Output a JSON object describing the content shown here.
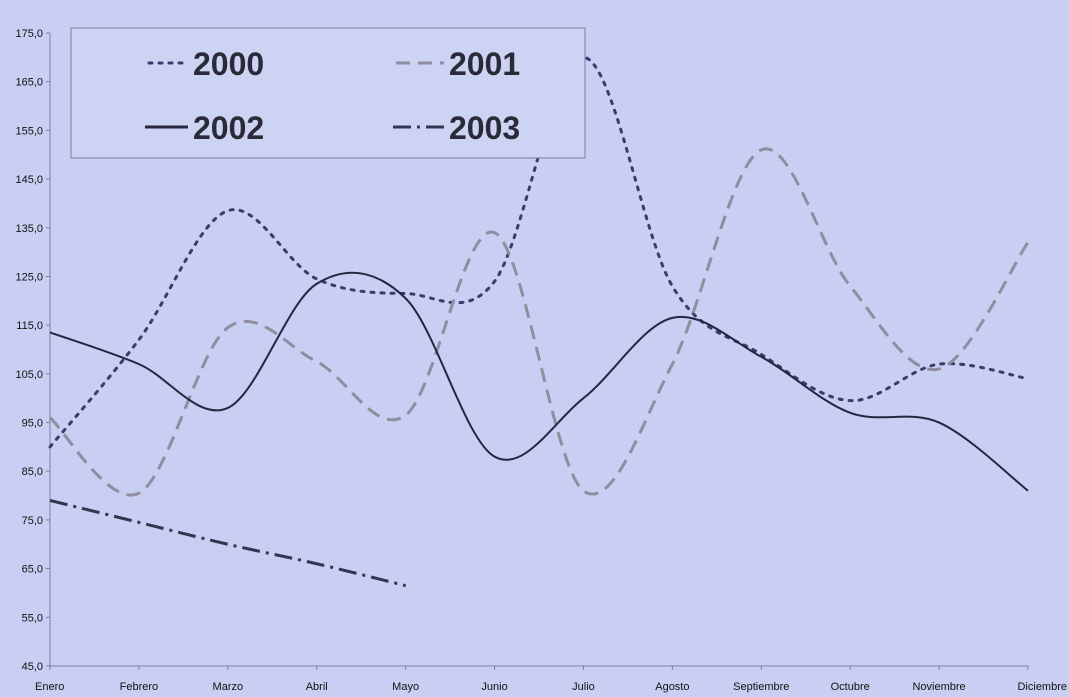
{
  "chart_data": {
    "type": "line",
    "title": "",
    "xlabel": "",
    "ylabel": "",
    "categories": [
      "Enero",
      "Febrero",
      "Marzo",
      "Abril",
      "Mayo",
      "Junio",
      "Julio",
      "Agosto",
      "Septiembre",
      "Octubre",
      "Noviembre",
      "Diciembre"
    ],
    "ylim": [
      45,
      175
    ],
    "yticks": [
      "45,0",
      "55,0",
      "65,0",
      "75,0",
      "85,0",
      "95,0",
      "105,0",
      "115,0",
      "125,0",
      "135,0",
      "145,0",
      "155,0",
      "165,0",
      "175,0"
    ],
    "grid": false,
    "legend_position": "top-left",
    "series": [
      {
        "name": "2000",
        "style": "dotted",
        "color": "#3b3b70",
        "values": [
          90.0,
          112.0,
          138.5,
          124.5,
          121.5,
          124.0,
          170.0,
          123.0,
          109.0,
          99.5,
          107.0,
          104.0
        ]
      },
      {
        "name": "2001",
        "style": "dashed",
        "color": "#8e8e9e",
        "values": [
          96.0,
          80.5,
          114.5,
          107.5,
          96.5,
          134.0,
          81.0,
          107.0,
          151.0,
          123.0,
          106.0,
          132.0
        ]
      },
      {
        "name": "2002",
        "style": "solid",
        "color": "#262640",
        "values": [
          113.5,
          107.0,
          98.0,
          123.5,
          120.5,
          88.0,
          100.0,
          116.5,
          108.5,
          97.0,
          95.0,
          81.0
        ]
      },
      {
        "name": "2003",
        "style": "dashdot",
        "color": "#353550",
        "values": [
          79.0,
          74.5,
          70.0,
          66.0,
          61.5,
          null,
          null,
          null,
          null,
          null,
          null,
          null
        ]
      }
    ]
  }
}
